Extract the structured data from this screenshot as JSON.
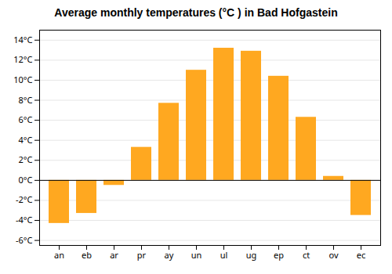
{
  "chart_data": {
    "type": "bar",
    "title": "Average monthly temperatures (°C ) in Bad Hofgastein",
    "categories": [
      "an",
      "eb",
      "ar",
      "pr",
      "ay",
      "un",
      "ul",
      "ug",
      "ep",
      "ct",
      "ov",
      "ec"
    ],
    "values": [
      -4.3,
      -3.3,
      -0.5,
      3.3,
      7.7,
      11.0,
      13.2,
      12.9,
      10.4,
      6.3,
      0.4,
      -3.5
    ],
    "color": "#FFA820",
    "ylim": [
      -6.5,
      15.0
    ],
    "yticks": [
      {
        "value": -6,
        "label": "-6°C"
      },
      {
        "value": -4,
        "label": "-4°C"
      },
      {
        "value": -2,
        "label": "-2°C"
      },
      {
        "value": 0,
        "label": "0°C"
      },
      {
        "value": 2,
        "label": "2°C"
      },
      {
        "value": 4,
        "label": "4°C"
      },
      {
        "value": 6,
        "label": "6°C"
      },
      {
        "value": 8,
        "label": "8°C"
      },
      {
        "value": 10,
        "label": "10°C"
      },
      {
        "value": 12,
        "label": "12°C"
      },
      {
        "value": 14,
        "label": "14°C"
      }
    ],
    "grid": true
  }
}
